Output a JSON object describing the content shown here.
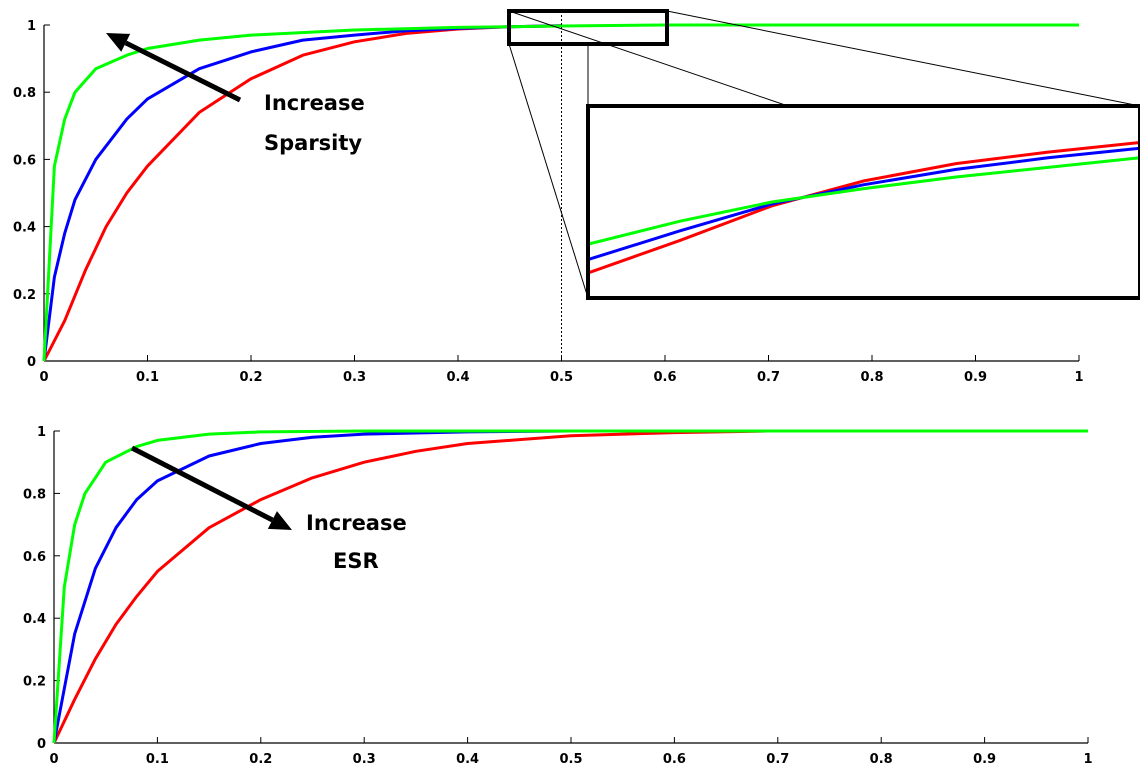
{
  "chart_data": [
    {
      "type": "line",
      "title": "",
      "xlabel": "",
      "ylabel": "",
      "xlim": [
        0,
        1
      ],
      "ylim": [
        0,
        1
      ],
      "x_ticks": [
        "0",
        "0.1",
        "0.2",
        "0.3",
        "0.4",
        "0.5",
        "0.6",
        "0.7",
        "0.8",
        "0.9",
        "1"
      ],
      "y_ticks": [
        "0",
        "0.2",
        "0.4",
        "0.6",
        "0.8",
        "1"
      ],
      "grid": false,
      "series": [
        {
          "color": "#00ff00",
          "x": [
            0,
            0.01,
            0.02,
            0.03,
            0.05,
            0.08,
            0.1,
            0.15,
            0.2,
            0.3,
            0.4,
            0.5,
            0.6,
            0.7,
            0.8,
            0.9,
            1.0
          ],
          "y": [
            0,
            0.58,
            0.72,
            0.8,
            0.87,
            0.91,
            0.93,
            0.955,
            0.97,
            0.985,
            0.993,
            0.997,
            1.0,
            1.0,
            1.0,
            1.0,
            1.0
          ]
        },
        {
          "color": "#0000ff",
          "x": [
            0,
            0.01,
            0.02,
            0.03,
            0.05,
            0.08,
            0.1,
            0.15,
            0.2,
            0.25,
            0.3,
            0.35,
            0.4,
            0.45,
            0.5
          ],
          "y": [
            0,
            0.25,
            0.38,
            0.48,
            0.6,
            0.72,
            0.78,
            0.87,
            0.92,
            0.955,
            0.97,
            0.983,
            0.99,
            0.995,
            0.998
          ]
        },
        {
          "color": "#ff0000",
          "x": [
            0,
            0.02,
            0.04,
            0.06,
            0.08,
            0.1,
            0.15,
            0.2,
            0.25,
            0.3,
            0.35,
            0.4,
            0.45,
            0.5
          ],
          "y": [
            0,
            0.12,
            0.27,
            0.4,
            0.5,
            0.58,
            0.74,
            0.84,
            0.91,
            0.95,
            0.975,
            0.988,
            0.995,
            0.998
          ]
        }
      ],
      "annotations": [
        "Increase",
        "Sparsity"
      ],
      "zoom_marker_x": 0.5,
      "zoom_region": {
        "xlim": [
          0.45,
          0.6
        ],
        "ylim": [
          0.95,
          1.0
        ]
      },
      "inset_curves": [
        {
          "color": "#00ff00",
          "y": [
            0.28,
            0.4,
            0.5,
            0.57,
            0.63,
            0.68,
            0.73
          ]
        },
        {
          "color": "#0000ff",
          "y": [
            0.2,
            0.35,
            0.49,
            0.59,
            0.67,
            0.73,
            0.78
          ]
        },
        {
          "color": "#ff0000",
          "y": [
            0.13,
            0.3,
            0.48,
            0.61,
            0.7,
            0.76,
            0.81
          ]
        }
      ]
    },
    {
      "type": "line",
      "title": "",
      "xlabel": "",
      "ylabel": "",
      "xlim": [
        0,
        1
      ],
      "ylim": [
        0,
        1
      ],
      "x_ticks": [
        "0",
        "0.1",
        "0.2",
        "0.3",
        "0.4",
        "0.5",
        "0.6",
        "0.7",
        "0.8",
        "0.9",
        "1"
      ],
      "y_ticks": [
        "0",
        "0.2",
        "0.4",
        "0.6",
        "0.8",
        "1"
      ],
      "grid": false,
      "series": [
        {
          "color": "#00ff00",
          "x": [
            0,
            0.01,
            0.02,
            0.03,
            0.05,
            0.08,
            0.1,
            0.15,
            0.2,
            0.3,
            0.4,
            0.5,
            0.6,
            0.7,
            0.8,
            0.9,
            1.0
          ],
          "y": [
            0,
            0.5,
            0.7,
            0.8,
            0.9,
            0.95,
            0.97,
            0.99,
            0.997,
            1.0,
            1.0,
            1.0,
            1.0,
            1.0,
            1.0,
            1.0,
            1.0
          ]
        },
        {
          "color": "#0000ff",
          "x": [
            0,
            0.02,
            0.04,
            0.06,
            0.08,
            0.1,
            0.15,
            0.2,
            0.25,
            0.3,
            0.4,
            0.5,
            0.6
          ],
          "y": [
            0,
            0.35,
            0.56,
            0.69,
            0.78,
            0.84,
            0.92,
            0.96,
            0.98,
            0.99,
            0.997,
            1.0,
            1.0
          ]
        },
        {
          "color": "#ff0000",
          "x": [
            0,
            0.02,
            0.04,
            0.06,
            0.08,
            0.1,
            0.15,
            0.2,
            0.25,
            0.3,
            0.35,
            0.4,
            0.5,
            0.6,
            0.69
          ],
          "y": [
            0,
            0.14,
            0.27,
            0.38,
            0.47,
            0.55,
            0.69,
            0.78,
            0.85,
            0.9,
            0.935,
            0.96,
            0.985,
            0.995,
            1.0
          ]
        }
      ],
      "annotations": [
        "Increase",
        "ESR"
      ]
    }
  ]
}
